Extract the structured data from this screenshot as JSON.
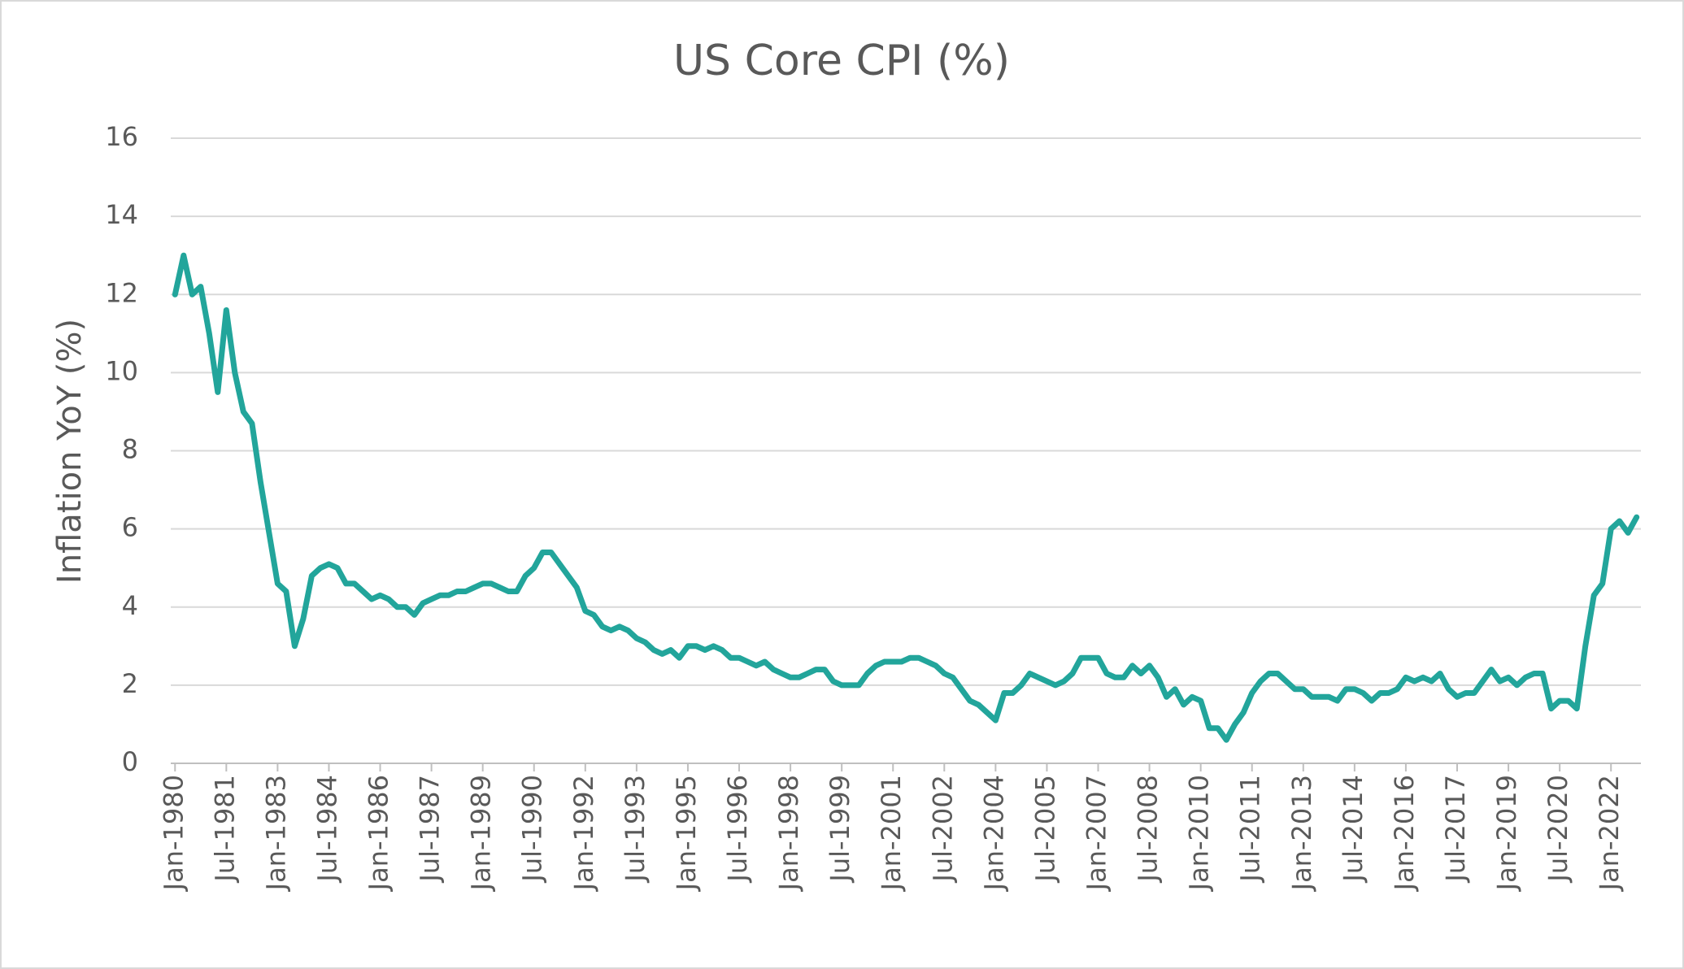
{
  "chart_data": {
    "type": "line",
    "title": "US Core CPI (%)",
    "y_label": "Inflation YoY (%)",
    "categories": [
      "Jan-1980",
      null,
      null,
      null,
      null,
      null,
      "Jul-1981",
      null,
      null,
      null,
      null,
      null,
      "Jan-1983",
      null,
      null,
      null,
      null,
      null,
      "Jul-1984",
      null,
      null,
      null,
      null,
      null,
      "Jan-1986",
      null,
      null,
      null,
      null,
      null,
      "Jul-1987",
      null,
      null,
      null,
      null,
      null,
      "Jan-1989",
      null,
      null,
      null,
      null,
      null,
      "Jul-1990",
      null,
      null,
      null,
      null,
      null,
      "Jan-1992",
      null,
      null,
      null,
      null,
      null,
      "Jul-1993",
      null,
      null,
      null,
      null,
      null,
      "Jan-1995",
      null,
      null,
      null,
      null,
      null,
      "Jul-1996",
      null,
      null,
      null,
      null,
      null,
      "Jan-1998",
      null,
      null,
      null,
      null,
      null,
      "Jul-1999",
      null,
      null,
      null,
      null,
      null,
      "Jan-2001",
      null,
      null,
      null,
      null,
      null,
      "Jul-2002",
      null,
      null,
      null,
      null,
      null,
      "Jan-2004",
      null,
      null,
      null,
      null,
      null,
      "Jul-2005",
      null,
      null,
      null,
      null,
      null,
      "Jan-2007",
      null,
      null,
      null,
      null,
      null,
      "Jul-2008",
      null,
      null,
      null,
      null,
      null,
      "Jan-2010",
      null,
      null,
      null,
      null,
      null,
      "Jul-2011",
      null,
      null,
      null,
      null,
      null,
      "Jan-2013",
      null,
      null,
      null,
      null,
      null,
      "Jul-2014",
      null,
      null,
      null,
      null,
      null,
      "Jan-2016",
      null,
      null,
      null,
      null,
      null,
      "Jul-2017",
      null,
      null,
      null,
      null,
      null,
      "Jan-2019",
      null,
      null,
      null,
      null,
      null,
      "Jul-2020",
      null,
      null,
      null,
      null,
      null,
      "Jan-2022",
      null,
      null,
      null
    ],
    "series": [
      {
        "name": "US Core CPI",
        "color": "#22a59b",
        "values": [
          12.0,
          13.0,
          12.0,
          12.2,
          11.0,
          9.5,
          11.6,
          10.0,
          9.0,
          8.7,
          7.2,
          5.9,
          4.6,
          4.4,
          3.0,
          3.7,
          4.8,
          5.0,
          5.1,
          5.0,
          4.6,
          4.6,
          4.4,
          4.2,
          4.3,
          4.2,
          4.0,
          4.0,
          3.8,
          4.1,
          4.2,
          4.3,
          4.3,
          4.4,
          4.4,
          4.5,
          4.6,
          4.6,
          4.5,
          4.4,
          4.4,
          4.8,
          5.0,
          5.4,
          5.4,
          5.1,
          4.8,
          4.5,
          3.9,
          3.8,
          3.5,
          3.4,
          3.5,
          3.4,
          3.2,
          3.1,
          2.9,
          2.8,
          2.9,
          2.7,
          3.0,
          3.0,
          2.9,
          3.0,
          2.9,
          2.7,
          2.7,
          2.6,
          2.5,
          2.6,
          2.4,
          2.3,
          2.2,
          2.2,
          2.3,
          2.4,
          2.4,
          2.1,
          2.0,
          2.0,
          2.0,
          2.3,
          2.5,
          2.6,
          2.6,
          2.6,
          2.7,
          2.7,
          2.6,
          2.5,
          2.3,
          2.2,
          1.9,
          1.6,
          1.5,
          1.3,
          1.1,
          1.8,
          1.8,
          2.0,
          2.3,
          2.2,
          2.1,
          2.0,
          2.1,
          2.3,
          2.7,
          2.7,
          2.7,
          2.3,
          2.2,
          2.2,
          2.5,
          2.3,
          2.5,
          2.2,
          1.7,
          1.9,
          1.5,
          1.7,
          1.6,
          0.9,
          0.9,
          0.6,
          1.0,
          1.3,
          1.8,
          2.1,
          2.3,
          2.3,
          2.1,
          1.9,
          1.9,
          1.7,
          1.7,
          1.7,
          1.6,
          1.9,
          1.9,
          1.8,
          1.6,
          1.8,
          1.8,
          1.9,
          2.2,
          2.1,
          2.2,
          2.1,
          2.3,
          1.9,
          1.7,
          1.8,
          1.8,
          2.1,
          2.4,
          2.1,
          2.2,
          2.0,
          2.2,
          2.3,
          2.3,
          1.4,
          1.6,
          1.6,
          1.4,
          3.0,
          4.3,
          4.6,
          6.0,
          6.2,
          5.9,
          6.3
        ]
      }
    ],
    "ylim": [
      0,
      16
    ],
    "yticks": [
      0,
      2,
      4,
      6,
      8,
      10,
      12,
      14,
      16
    ],
    "grid": true
  }
}
